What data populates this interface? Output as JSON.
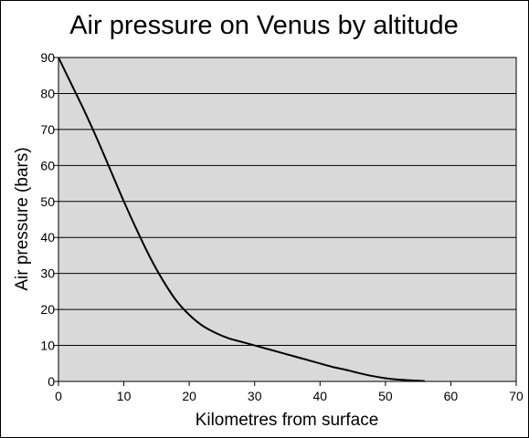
{
  "chart_data": {
    "type": "line",
    "title": "Air pressure on Venus by altitude",
    "xlabel": "Kilometres from surface",
    "ylabel": "Air pressure (bars)",
    "xlim": [
      0,
      70
    ],
    "ylim": [
      0,
      90
    ],
    "x_ticks": [
      "0",
      "10",
      "20",
      "30",
      "40",
      "50",
      "60",
      "70"
    ],
    "y_ticks": [
      "0",
      "10",
      "20",
      "30",
      "40",
      "50",
      "60",
      "70",
      "80",
      "90"
    ],
    "grid": "horizontal",
    "legend": "none",
    "series": [
      {
        "color": "#000000",
        "points": [
          [
            0,
            90
          ],
          [
            2,
            82.5
          ],
          [
            4,
            75
          ],
          [
            6,
            67
          ],
          [
            8,
            58.5
          ],
          [
            10,
            50
          ],
          [
            12,
            42
          ],
          [
            14,
            34.5
          ],
          [
            16,
            28
          ],
          [
            18,
            22.5
          ],
          [
            20,
            18.5
          ],
          [
            22,
            15.5
          ],
          [
            24,
            13.5
          ],
          [
            26,
            12
          ],
          [
            28,
            11
          ],
          [
            30,
            10
          ],
          [
            32,
            9
          ],
          [
            34,
            8
          ],
          [
            36,
            7
          ],
          [
            38,
            6
          ],
          [
            40,
            5
          ],
          [
            42,
            4
          ],
          [
            44,
            3.2
          ],
          [
            46,
            2.3
          ],
          [
            48,
            1.5
          ],
          [
            50,
            0.9
          ],
          [
            52,
            0.5
          ],
          [
            54,
            0.3
          ],
          [
            56,
            0.1
          ]
        ]
      }
    ],
    "colors": {
      "plot_background": "#d9d9d9",
      "gridline": "#000000",
      "page_background": "#ffffff"
    }
  }
}
